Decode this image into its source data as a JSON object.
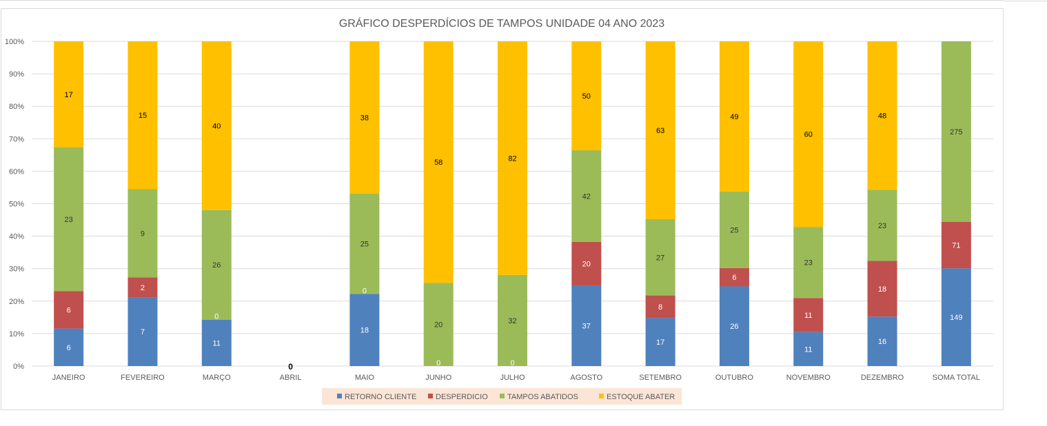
{
  "chart_data": {
    "type": "bar",
    "stacked": "percent",
    "title": "GRÁFICO DESPERDÍCIOS DE TAMPOS UNIDADE 04 ANO 2023",
    "xlabel": "",
    "ylabel": "",
    "ylim": [
      0,
      100
    ],
    "y_ticks": [
      "0%",
      "10%",
      "20%",
      "30%",
      "40%",
      "50%",
      "60%",
      "70%",
      "80%",
      "90%",
      "100%"
    ],
    "grid": true,
    "legend_placement": "bottom",
    "categories": [
      "JANEIRO",
      "FEVEREIRO",
      "MARÇO",
      "ABRIL",
      "MAIO",
      "JUNHO",
      "JULHO",
      "AGOSTO",
      "SETEMBRO",
      "OUTUBRO",
      "NOVEMBRO",
      "DEZEMBRO",
      "SOMA TOTAL"
    ],
    "series": [
      {
        "name": "RETORNO  CLIENTE",
        "color": "#4f81bd",
        "label_color": "#ffffff",
        "values": [
          6,
          7,
          11,
          0,
          18,
          0,
          0,
          37,
          17,
          26,
          11,
          16,
          149
        ]
      },
      {
        "name": "DESPERDICIO",
        "color": "#c0504d",
        "label_color": "#ffffff",
        "values": [
          6,
          2,
          0,
          0,
          0,
          0,
          0,
          20,
          8,
          6,
          11,
          18,
          71
        ]
      },
      {
        "name": "TAMPOS ABATIDOS",
        "color": "#9bbb59",
        "label_color": "#333333",
        "values": [
          23,
          9,
          26,
          0,
          25,
          20,
          32,
          42,
          27,
          25,
          23,
          23,
          275
        ]
      },
      {
        "name": "ESTOQUE  ABATER",
        "color": "#ffc000",
        "label_color": "#000000",
        "values": [
          17,
          15,
          40,
          0,
          38,
          58,
          82,
          50,
          63,
          49,
          60,
          48,
          0
        ]
      }
    ],
    "data_labels": [
      [
        "6",
        "7",
        "11",
        "",
        "18",
        "0",
        "0",
        "37",
        "17",
        "26",
        "11",
        "16",
        "149"
      ],
      [
        "6",
        "2",
        "0",
        "",
        "0",
        "",
        "",
        "20",
        "8",
        "6",
        "11",
        "18",
        "71"
      ],
      [
        "23",
        "9",
        "26",
        "",
        "25",
        "20",
        "32",
        "42",
        "27",
        "25",
        "23",
        "23",
        "275"
      ],
      [
        "17",
        "15",
        "40",
        "",
        "38",
        "58",
        "82",
        "50",
        "63",
        "49",
        "60",
        "48",
        ""
      ]
    ],
    "zero_total_label": "0",
    "legend_background": "#fbe5d6"
  }
}
